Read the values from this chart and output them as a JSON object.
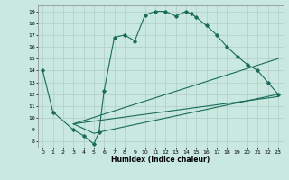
{
  "title": "",
  "xlabel": "Humidex (Indice chaleur)",
  "bg_color": "#c8e8e0",
  "grid_color": "#b0ccc8",
  "line_color": "#1a6b5a",
  "xlim": [
    -0.5,
    23.5
  ],
  "ylim": [
    7.5,
    19.5
  ],
  "xticks": [
    0,
    1,
    2,
    3,
    4,
    5,
    6,
    7,
    8,
    9,
    10,
    11,
    12,
    13,
    14,
    15,
    16,
    17,
    18,
    19,
    20,
    21,
    22,
    23
  ],
  "yticks": [
    8,
    9,
    10,
    11,
    12,
    13,
    14,
    15,
    16,
    17,
    18,
    19
  ],
  "line1_x": [
    0,
    1,
    3,
    4,
    5,
    5.5,
    6,
    7,
    8,
    9,
    10,
    11,
    12,
    13,
    14,
    14.5,
    15,
    16,
    17,
    18,
    19,
    20,
    21,
    22,
    23
  ],
  "line1_y": [
    14,
    10.5,
    9,
    8.5,
    7.8,
    8.8,
    12.3,
    16.8,
    17.0,
    16.5,
    18.7,
    19.0,
    19.0,
    18.6,
    19.0,
    18.8,
    18.5,
    17.8,
    17.0,
    16.0,
    15.2,
    14.5,
    14.0,
    13.0,
    12.0
  ],
  "line2_x": [
    3,
    5,
    5.5,
    23
  ],
  "line2_y": [
    9.5,
    8.7,
    8.8,
    12.0
  ],
  "line3_x": [
    3,
    23
  ],
  "line3_y": [
    9.5,
    15.0
  ],
  "line4_x": [
    3,
    23
  ],
  "line4_y": [
    9.5,
    11.8
  ]
}
